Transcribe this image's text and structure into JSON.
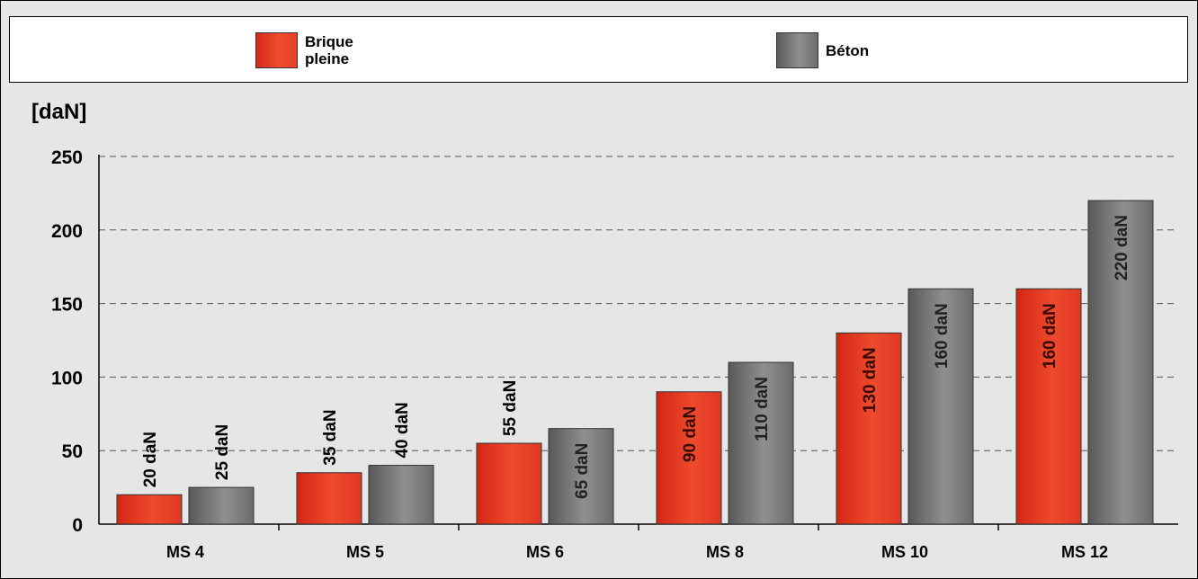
{
  "chart_data": {
    "type": "bar",
    "unit_label": "[daN]",
    "categories": [
      "MS 4",
      "MS 5",
      "MS 6",
      "MS 8",
      "MS 10",
      "MS 12"
    ],
    "series": [
      {
        "name": "Brique pleine",
        "color": "#e33b26",
        "values": [
          20,
          35,
          55,
          90,
          130,
          160
        ],
        "labels": [
          "20 daN",
          "35 daN",
          "55 daN",
          "90 daN",
          "130 daN",
          "160 daN"
        ]
      },
      {
        "name": "Béton",
        "color": "#7a7a7a",
        "values": [
          25,
          40,
          65,
          110,
          160,
          220
        ],
        "labels": [
          "25 daN",
          "40 daN",
          "65 daN",
          "110 daN",
          "160 daN",
          "220 daN"
        ]
      }
    ],
    "yticks": [
      "0",
      "50",
      "100",
      "150",
      "200",
      "250"
    ],
    "ylim": [
      0,
      250
    ],
    "grid": true,
    "legend_position": "top"
  },
  "legend": {
    "item1_line1": "Brique",
    "item1_line2": "pleine",
    "item2": "Béton"
  }
}
